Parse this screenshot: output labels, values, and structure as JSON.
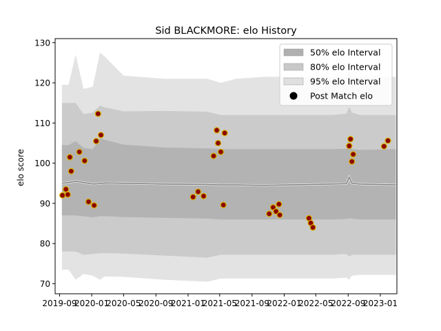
{
  "chart_data": {
    "type": "line",
    "title": "Sid BLACKMORE: elo History",
    "xlabel": "",
    "ylabel": "elo score",
    "xlim": [
      "2019-08-15",
      "2023-03-05"
    ],
    "ylim": [
      67.5,
      131
    ],
    "x_ticks": [
      "2019-09",
      "2020-01",
      "2020-05",
      "2020-09",
      "2021-01",
      "2021-05",
      "2021-09",
      "2022-01",
      "2022-05",
      "2022-09",
      "2023-01"
    ],
    "y_ticks": [
      70,
      80,
      90,
      100,
      110,
      120,
      130
    ],
    "grid": false,
    "legend_position": "top-right",
    "legend": [
      {
        "label": "50% elo Interval",
        "kind": "band",
        "color": "#b0b0b0"
      },
      {
        "label": "80% elo Interval",
        "kind": "band",
        "color": "#c8c8c8"
      },
      {
        "label": "95% elo Interval",
        "kind": "band",
        "color": "#e0e0e0"
      },
      {
        "label": "Post Match elo",
        "kind": "marker",
        "color": "#000000"
      }
    ],
    "colors": {
      "marker_fill": "#8b0000",
      "marker_edge": "#d4b000",
      "mean_line": "#808080",
      "band_95": "#e0e0e0",
      "band_80": "#c8c8c8",
      "band_50": "#b0b0b0"
    },
    "bands": {
      "x": [
        "2019-09-10",
        "2019-10-05",
        "2019-11-01",
        "2019-12-01",
        "2020-01-05",
        "2020-02-01",
        "2020-02-20",
        "2020-05-01",
        "2020-10-01",
        "2021-03-15",
        "2021-05-05",
        "2021-07-01",
        "2021-10-15",
        "2022-01-15",
        "2022-07-01",
        "2022-08-25",
        "2022-09-05",
        "2022-09-15",
        "2022-10-15",
        "2023-03-01"
      ],
      "mean": [
        95.0,
        95.2,
        95.5,
        95.2,
        94.8,
        94.9,
        95.1,
        95.0,
        94.8,
        94.7,
        94.6,
        94.6,
        94.5,
        94.6,
        94.8,
        94.9,
        96.5,
        95.0,
        94.8,
        94.6
      ],
      "p50": [
        [
          87.0,
          104.5
        ],
        [
          87.0,
          104.5
        ],
        [
          87.0,
          105.5
        ],
        [
          86.8,
          103.8
        ],
        [
          86.5,
          103.5
        ],
        [
          86.8,
          106.2
        ],
        [
          86.8,
          105.8
        ],
        [
          86.6,
          104.6
        ],
        [
          86.4,
          103.9
        ],
        [
          86.2,
          103.7
        ],
        [
          86.0,
          103.5
        ],
        [
          86.0,
          103.5
        ],
        [
          86.0,
          103.5
        ],
        [
          86.0,
          103.5
        ],
        [
          86.0,
          103.5
        ],
        [
          86.1,
          103.6
        ],
        [
          86.3,
          106.7
        ],
        [
          86.2,
          103.5
        ],
        [
          86.0,
          103.3
        ],
        [
          86.0,
          103.5
        ]
      ],
      "p80": [
        [
          78.0,
          115.0
        ],
        [
          78.0,
          115.0
        ],
        [
          78.0,
          115.0
        ],
        [
          77.2,
          112.2
        ],
        [
          77.4,
          112.6
        ],
        [
          77.6,
          114.3
        ],
        [
          77.6,
          113.9
        ],
        [
          77.5,
          112.9
        ],
        [
          77.0,
          113.0
        ],
        [
          76.5,
          112.8
        ],
        [
          77.2,
          112.0
        ],
        [
          77.2,
          112.0
        ],
        [
          77.2,
          112.0
        ],
        [
          77.2,
          112.0
        ],
        [
          77.2,
          112.0
        ],
        [
          77.4,
          112.3
        ],
        [
          76.8,
          114.0
        ],
        [
          77.2,
          112.6
        ],
        [
          77.2,
          112.0
        ],
        [
          77.2,
          112.0
        ]
      ],
      "p95": [
        [
          73.5,
          119.5
        ],
        [
          73.5,
          119.5
        ],
        [
          71.0,
          127.0
        ],
        [
          72.4,
          118.5
        ],
        [
          72.0,
          119.0
        ],
        [
          71.0,
          127.5
        ],
        [
          71.8,
          126.5
        ],
        [
          71.7,
          121.8
        ],
        [
          71.0,
          121.0
        ],
        [
          70.5,
          121.0
        ],
        [
          71.3,
          120.0
        ],
        [
          71.3,
          121.0
        ],
        [
          71.3,
          121.5
        ],
        [
          71.3,
          121.5
        ],
        [
          71.3,
          121.5
        ],
        [
          71.5,
          121.5
        ],
        [
          71.0,
          123.5
        ],
        [
          72.0,
          121.5
        ],
        [
          72.2,
          121.5
        ],
        [
          72.2,
          121.5
        ]
      ]
    },
    "series": [
      {
        "name": "Post Match elo",
        "points": [
          [
            "2019-09-12",
            92.0
          ],
          [
            "2019-09-25",
            93.5
          ],
          [
            "2019-10-02",
            92.2
          ],
          [
            "2019-10-10",
            101.5
          ],
          [
            "2019-10-15",
            98.0
          ],
          [
            "2019-11-15",
            102.8
          ],
          [
            "2019-12-05",
            100.6
          ],
          [
            "2019-12-20",
            90.4
          ],
          [
            "2020-01-10",
            89.5
          ],
          [
            "2020-01-18",
            105.5
          ],
          [
            "2020-01-25",
            112.3
          ],
          [
            "2020-02-05",
            107.0
          ],
          [
            "2021-01-20",
            91.6
          ],
          [
            "2021-02-08",
            92.9
          ],
          [
            "2021-03-01",
            91.8
          ],
          [
            "2021-04-08",
            101.8
          ],
          [
            "2021-04-20",
            108.2
          ],
          [
            "2021-04-25",
            105.0
          ],
          [
            "2021-05-05",
            102.8
          ],
          [
            "2021-05-15",
            89.6
          ],
          [
            "2021-05-20",
            107.5
          ],
          [
            "2021-11-05",
            87.4
          ],
          [
            "2021-11-20",
            89.0
          ],
          [
            "2021-12-01",
            88.0
          ],
          [
            "2021-12-12",
            89.8
          ],
          [
            "2021-12-15",
            87.1
          ],
          [
            "2022-04-05",
            86.3
          ],
          [
            "2022-04-12",
            85.1
          ],
          [
            "2022-04-20",
            84.0
          ],
          [
            "2022-09-05",
            104.3
          ],
          [
            "2022-09-10",
            106.0
          ],
          [
            "2022-09-15",
            100.4
          ],
          [
            "2022-09-20",
            102.2
          ],
          [
            "2023-01-15",
            104.2
          ],
          [
            "2023-01-30",
            105.6
          ]
        ]
      }
    ]
  }
}
